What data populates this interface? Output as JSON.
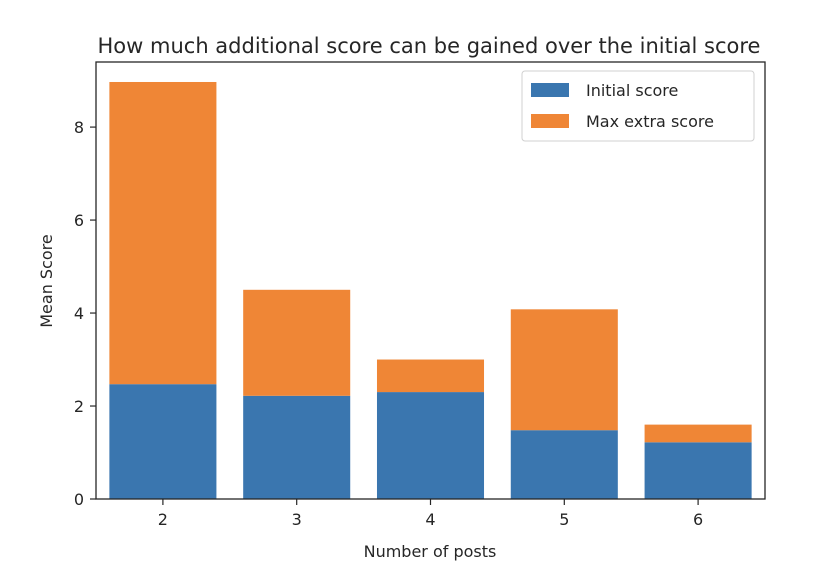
{
  "chart_data": {
    "type": "bar",
    "stacked": true,
    "title": "How much additional score can be gained over the initial score",
    "xlabel": "Number of posts",
    "ylabel": "Mean Score",
    "categories": [
      "2",
      "3",
      "4",
      "5",
      "6"
    ],
    "ylim": [
      0,
      9.4
    ],
    "yticks": [
      0,
      2,
      4,
      6,
      8
    ],
    "series": [
      {
        "name": "Initial score",
        "color": "#3a76af",
        "values": [
          2.47,
          2.22,
          2.3,
          1.48,
          1.22
        ]
      },
      {
        "name": "Max extra score",
        "color": "#ef8636",
        "values": [
          6.5,
          2.28,
          0.7,
          2.6,
          0.38
        ]
      }
    ],
    "grid": false,
    "legend": "top-right"
  }
}
